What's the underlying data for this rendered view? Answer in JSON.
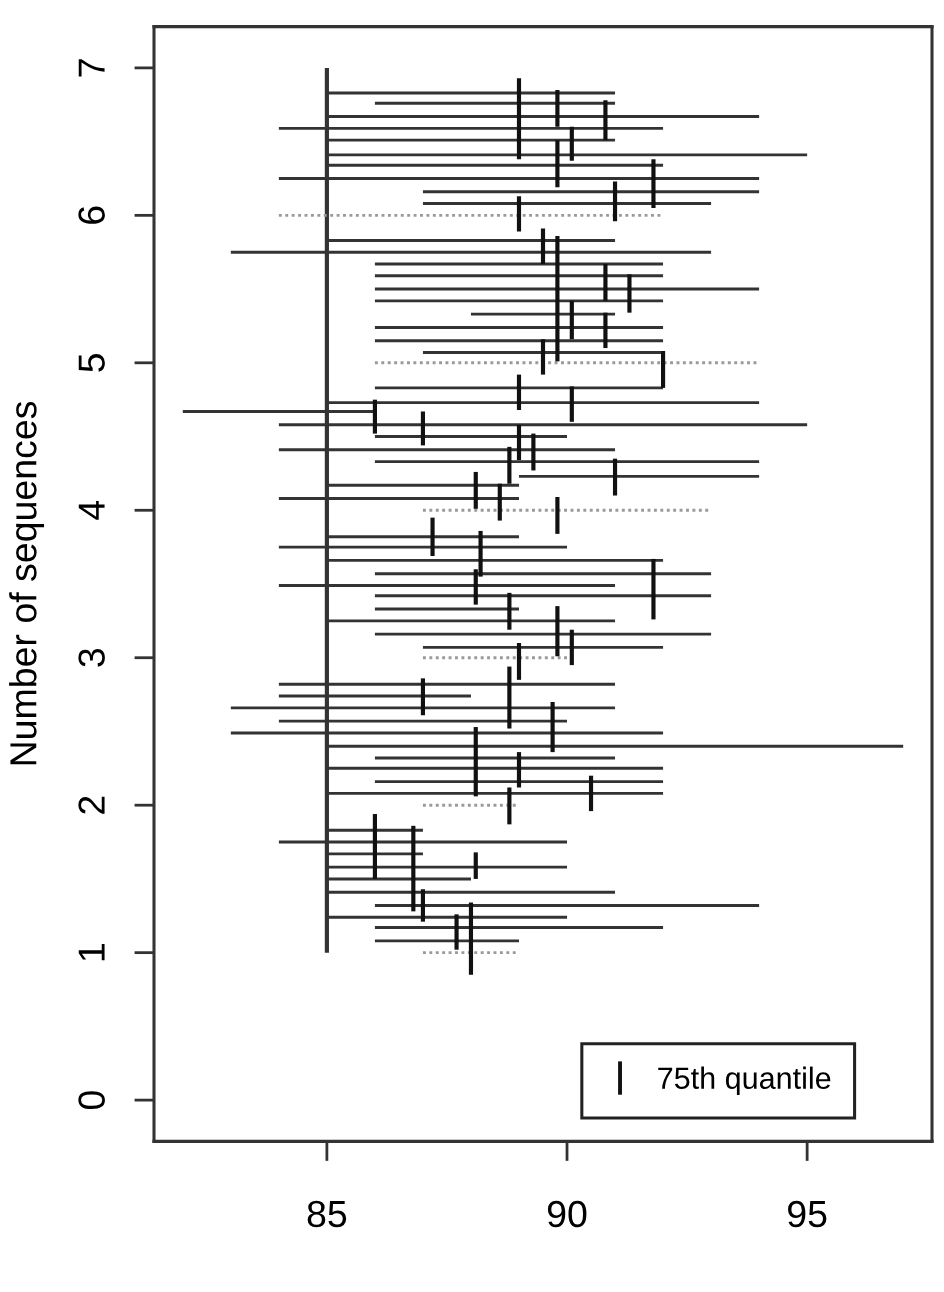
{
  "chart_data": {
    "type": "line",
    "ylabel": "Number of sequences",
    "xlim": [
      81.4,
      97.6
    ],
    "xticks": [
      85,
      90,
      95
    ],
    "ylim": [
      -0.28,
      7.28
    ],
    "yticks": [
      0,
      1,
      2,
      3,
      4,
      5,
      6,
      7
    ],
    "legend": "bottom right",
    "series": [
      {
        "color": "#333333",
        "x": [
          85,
          91
        ],
        "values": [
          6.83,
          6.83
        ]
      },
      {
        "color": "#333333",
        "x": [
          86,
          91
        ],
        "values": [
          6.76,
          6.76
        ]
      },
      {
        "color": "#333333",
        "x": [
          85,
          94
        ],
        "values": [
          6.67,
          6.67
        ]
      },
      {
        "color": "#333333",
        "x": [
          84,
          92
        ],
        "values": [
          6.59,
          6.59
        ]
      },
      {
        "color": "#333333",
        "x": [
          85,
          91
        ],
        "values": [
          6.51,
          6.51
        ]
      },
      {
        "color": "#333333",
        "x": [
          85,
          95
        ],
        "values": [
          6.41,
          6.41
        ]
      },
      {
        "color": "#333333",
        "x": [
          85,
          92
        ],
        "values": [
          6.34,
          6.34
        ]
      },
      {
        "color": "#333333",
        "x": [
          84,
          94
        ],
        "values": [
          6.25,
          6.25
        ]
      },
      {
        "color": "#333333",
        "x": [
          87,
          94
        ],
        "values": [
          6.16,
          6.16
        ]
      },
      {
        "color": "#333333",
        "x": [
          87,
          93
        ],
        "values": [
          6.08,
          6.08
        ]
      },
      {
        "color": "#333333",
        "x": [
          85,
          91
        ],
        "values": [
          5.83,
          5.83
        ]
      },
      {
        "color": "#333333",
        "x": [
          83,
          93
        ],
        "values": [
          5.75,
          5.75
        ]
      },
      {
        "color": "#333333",
        "x": [
          86,
          92
        ],
        "values": [
          5.67,
          5.67
        ]
      },
      {
        "color": "#333333",
        "x": [
          86,
          92
        ],
        "values": [
          5.59,
          5.59
        ]
      },
      {
        "color": "#333333",
        "x": [
          86,
          94
        ],
        "values": [
          5.5,
          5.5
        ]
      },
      {
        "color": "#333333",
        "x": [
          86,
          92
        ],
        "values": [
          5.42,
          5.42
        ]
      },
      {
        "color": "#333333",
        "x": [
          88,
          91
        ],
        "values": [
          5.33,
          5.33
        ]
      },
      {
        "color": "#333333",
        "x": [
          86,
          92
        ],
        "values": [
          5.24,
          5.24
        ]
      },
      {
        "color": "#333333",
        "x": [
          86,
          92
        ],
        "values": [
          5.15,
          5.15
        ]
      },
      {
        "color": "#333333",
        "x": [
          87,
          92
        ],
        "values": [
          5.07,
          5.07
        ]
      },
      {
        "color": "#333333",
        "x": [
          86,
          92
        ],
        "values": [
          4.83,
          4.83
        ]
      },
      {
        "color": "#333333",
        "x": [
          85,
          94
        ],
        "values": [
          4.73,
          4.73
        ]
      },
      {
        "color": "#333333",
        "x": [
          82,
          86
        ],
        "values": [
          4.67,
          4.67
        ]
      },
      {
        "color": "#333333",
        "x": [
          84,
          95
        ],
        "values": [
          4.58,
          4.58
        ]
      },
      {
        "color": "#333333",
        "x": [
          86,
          90
        ],
        "values": [
          4.5,
          4.5
        ]
      },
      {
        "color": "#333333",
        "x": [
          84,
          91
        ],
        "values": [
          4.41,
          4.41
        ]
      },
      {
        "color": "#333333",
        "x": [
          86,
          94
        ],
        "values": [
          4.33,
          4.33
        ]
      },
      {
        "color": "#333333",
        "x": [
          89,
          94
        ],
        "values": [
          4.23,
          4.23
        ]
      },
      {
        "color": "#333333",
        "x": [
          85,
          89
        ],
        "values": [
          4.17,
          4.17
        ]
      },
      {
        "color": "#333333",
        "x": [
          84,
          89
        ],
        "values": [
          4.08,
          4.08
        ]
      },
      {
        "color": "#333333",
        "x": [
          85,
          89
        ],
        "values": [
          3.82,
          3.82
        ]
      },
      {
        "color": "#333333",
        "x": [
          84,
          90
        ],
        "values": [
          3.75,
          3.75
        ]
      },
      {
        "color": "#333333",
        "x": [
          85,
          92
        ],
        "values": [
          3.66,
          3.66
        ]
      },
      {
        "color": "#333333",
        "x": [
          86,
          93
        ],
        "values": [
          3.57,
          3.57
        ]
      },
      {
        "color": "#333333",
        "x": [
          84,
          91
        ],
        "values": [
          3.49,
          3.49
        ]
      },
      {
        "color": "#333333",
        "x": [
          86,
          93
        ],
        "values": [
          3.42,
          3.42
        ]
      },
      {
        "color": "#333333",
        "x": [
          86,
          89
        ],
        "values": [
          3.33,
          3.33
        ]
      },
      {
        "color": "#333333",
        "x": [
          85,
          91
        ],
        "values": [
          3.25,
          3.25
        ]
      },
      {
        "color": "#333333",
        "x": [
          86,
          93
        ],
        "values": [
          3.16,
          3.16
        ]
      },
      {
        "color": "#333333",
        "x": [
          87,
          92
        ],
        "values": [
          3.07,
          3.07
        ]
      },
      {
        "color": "#333333",
        "x": [
          84,
          91
        ],
        "values": [
          2.82,
          2.82
        ]
      },
      {
        "color": "#333333",
        "x": [
          84,
          88
        ],
        "values": [
          2.74,
          2.74
        ]
      },
      {
        "color": "#333333",
        "x": [
          83,
          91
        ],
        "values": [
          2.66,
          2.66
        ]
      },
      {
        "color": "#333333",
        "x": [
          84,
          90
        ],
        "values": [
          2.57,
          2.57
        ]
      },
      {
        "color": "#333333",
        "x": [
          83,
          92
        ],
        "values": [
          2.49,
          2.49
        ]
      },
      {
        "color": "#333333",
        "x": [
          85,
          97
        ],
        "values": [
          2.4,
          2.4
        ]
      },
      {
        "color": "#333333",
        "x": [
          86,
          91
        ],
        "values": [
          2.32,
          2.32
        ]
      },
      {
        "color": "#333333",
        "x": [
          85,
          92
        ],
        "values": [
          2.25,
          2.25
        ]
      },
      {
        "color": "#333333",
        "x": [
          86,
          92
        ],
        "values": [
          2.16,
          2.16
        ]
      },
      {
        "color": "#333333",
        "x": [
          85,
          92
        ],
        "values": [
          2.08,
          2.08
        ]
      },
      {
        "color": "#333333",
        "x": [
          85,
          87
        ],
        "values": [
          1.83,
          1.83
        ]
      },
      {
        "color": "#333333",
        "x": [
          84,
          90
        ],
        "values": [
          1.75,
          1.75
        ]
      },
      {
        "color": "#333333",
        "x": [
          85,
          87
        ],
        "values": [
          1.67,
          1.67
        ]
      },
      {
        "color": "#333333",
        "x": [
          85,
          90
        ],
        "values": [
          1.58,
          1.58
        ]
      },
      {
        "color": "#333333",
        "x": [
          85,
          88
        ],
        "values": [
          1.5,
          1.5
        ]
      },
      {
        "color": "#333333",
        "x": [
          85,
          91
        ],
        "values": [
          1.41,
          1.41
        ]
      },
      {
        "color": "#333333",
        "x": [
          86,
          94
        ],
        "values": [
          1.32,
          1.32
        ]
      },
      {
        "color": "#333333",
        "x": [
          85,
          90
        ],
        "values": [
          1.24,
          1.24
        ]
      },
      {
        "color": "#333333",
        "x": [
          86,
          92
        ],
        "values": [
          1.17,
          1.17
        ]
      },
      {
        "color": "#333333",
        "x": [
          86,
          89
        ],
        "values": [
          1.08,
          1.08
        ]
      },
      {
        "color": "#333333",
        "x": [
          85,
          85
        ],
        "values": [
          1,
          7
        ]
      },
      {
        "color": "#9a9a9a",
        "line_style": "dotted",
        "x": [
          84,
          92
        ],
        "values": [
          6,
          6
        ]
      },
      {
        "color": "#9a9a9a",
        "line_style": "dotted",
        "x": [
          86,
          94
        ],
        "values": [
          5,
          5
        ]
      },
      {
        "color": "#9a9a9a",
        "line_style": "dotted",
        "x": [
          87,
          93
        ],
        "values": [
          4,
          4
        ]
      },
      {
        "color": "#9a9a9a",
        "line_style": "dotted",
        "x": [
          87,
          90
        ],
        "values": [
          3,
          3
        ]
      },
      {
        "color": "#9a9a9a",
        "line_style": "dotted",
        "x": [
          87,
          89
        ],
        "values": [
          2,
          2
        ]
      },
      {
        "color": "#9a9a9a",
        "line_style": "dotted",
        "x": [
          87,
          89
        ],
        "values": [
          1,
          1
        ]
      },
      {
        "name": "75th quantile",
        "color": "#111111",
        "x": [
          89,
          89
        ],
        "values": [
          6.38,
          6.93
        ]
      },
      {
        "color": "#111111",
        "x": [
          89.8,
          89.8
        ],
        "values": [
          6.6,
          6.85
        ]
      },
      {
        "color": "#111111",
        "x": [
          90.8,
          90.8
        ],
        "values": [
          6.51,
          6.78
        ]
      },
      {
        "color": "#111111",
        "x": [
          90.1,
          90.1
        ],
        "values": [
          6.37,
          6.6
        ]
      },
      {
        "color": "#111111",
        "x": [
          89.8,
          89.8
        ],
        "values": [
          6.19,
          6.51
        ]
      },
      {
        "color": "#111111",
        "x": [
          91.8,
          91.8
        ],
        "values": [
          6.05,
          6.38
        ]
      },
      {
        "color": "#111111",
        "x": [
          91,
          91
        ],
        "values": [
          5.96,
          6.23
        ]
      },
      {
        "color": "#111111",
        "x": [
          89,
          89
        ],
        "values": [
          5.89,
          6.13
        ]
      },
      {
        "color": "#111111",
        "x": [
          89.5,
          89.5
        ],
        "values": [
          5.67,
          5.91
        ]
      },
      {
        "color": "#111111",
        "x": [
          89.8,
          89.8
        ],
        "values": [
          5.01,
          5.86
        ]
      },
      {
        "color": "#111111",
        "x": [
          90.8,
          90.8
        ],
        "values": [
          5.42,
          5.67
        ]
      },
      {
        "color": "#111111",
        "x": [
          91.3,
          91.3
        ],
        "values": [
          5.34,
          5.6
        ]
      },
      {
        "color": "#111111",
        "x": [
          90.1,
          90.1
        ],
        "values": [
          5.16,
          5.42
        ]
      },
      {
        "color": "#111111",
        "x": [
          90.8,
          90.8
        ],
        "values": [
          5.1,
          5.34
        ]
      },
      {
        "color": "#111111",
        "x": [
          89.5,
          89.5
        ],
        "values": [
          4.92,
          5.16
        ]
      },
      {
        "color": "#111111",
        "x": [
          92,
          92
        ],
        "values": [
          4.83,
          5.08
        ]
      },
      {
        "color": "#111111",
        "x": [
          89,
          89
        ],
        "values": [
          4.68,
          4.92
        ]
      },
      {
        "color": "#111111",
        "x": [
          90.1,
          90.1
        ],
        "values": [
          4.6,
          4.84
        ]
      },
      {
        "color": "#111111",
        "x": [
          86,
          86
        ],
        "values": [
          4.52,
          4.75
        ]
      },
      {
        "color": "#111111",
        "x": [
          87,
          87
        ],
        "values": [
          4.44,
          4.67
        ]
      },
      {
        "color": "#111111",
        "x": [
          89,
          89
        ],
        "values": [
          4.34,
          4.58
        ]
      },
      {
        "color": "#111111",
        "x": [
          89.3,
          89.3
        ],
        "values": [
          4.27,
          4.52
        ]
      },
      {
        "color": "#111111",
        "x": [
          88.8,
          88.8
        ],
        "values": [
          4.18,
          4.43
        ]
      },
      {
        "color": "#111111",
        "x": [
          91,
          91
        ],
        "values": [
          4.1,
          4.35
        ]
      },
      {
        "color": "#111111",
        "x": [
          88.1,
          88.1
        ],
        "values": [
          4.01,
          4.26
        ]
      },
      {
        "color": "#111111",
        "x": [
          88.6,
          88.6
        ],
        "values": [
          3.93,
          4.18
        ]
      },
      {
        "color": "#111111",
        "x": [
          89.8,
          89.8
        ],
        "values": [
          3.84,
          4.09
        ]
      },
      {
        "color": "#111111",
        "x": [
          87.2,
          87.2
        ],
        "values": [
          3.69,
          3.95
        ]
      },
      {
        "color": "#111111",
        "x": [
          88.2,
          88.2
        ],
        "values": [
          3.55,
          3.86
        ]
      },
      {
        "color": "#111111",
        "x": [
          91.8,
          91.8
        ],
        "values": [
          3.26,
          3.67
        ]
      },
      {
        "color": "#111111",
        "x": [
          88.1,
          88.1
        ],
        "values": [
          3.36,
          3.6
        ]
      },
      {
        "color": "#111111",
        "x": [
          88.8,
          88.8
        ],
        "values": [
          3.19,
          3.44
        ]
      },
      {
        "color": "#111111",
        "x": [
          89.8,
          89.8
        ],
        "values": [
          3.01,
          3.35
        ]
      },
      {
        "color": "#111111",
        "x": [
          90.1,
          90.1
        ],
        "values": [
          2.95,
          3.19
        ]
      },
      {
        "color": "#111111",
        "x": [
          89,
          89
        ],
        "values": [
          2.85,
          3.1
        ]
      },
      {
        "color": "#111111",
        "x": [
          88.8,
          88.8
        ],
        "values": [
          2.52,
          2.94
        ]
      },
      {
        "color": "#111111",
        "x": [
          87,
          87
        ],
        "values": [
          2.61,
          2.86
        ]
      },
      {
        "color": "#111111",
        "x": [
          89.7,
          89.7
        ],
        "values": [
          2.36,
          2.7
        ]
      },
      {
        "color": "#111111",
        "x": [
          88.1,
          88.1
        ],
        "values": [
          2.06,
          2.53
        ]
      },
      {
        "color": "#111111",
        "x": [
          89,
          89
        ],
        "values": [
          2.12,
          2.36
        ]
      },
      {
        "color": "#111111",
        "x": [
          90.5,
          90.5
        ],
        "values": [
          1.96,
          2.2
        ]
      },
      {
        "color": "#111111",
        "x": [
          88.8,
          88.8
        ],
        "values": [
          1.87,
          2.12
        ]
      },
      {
        "color": "#111111",
        "x": [
          86,
          86
        ],
        "values": [
          1.5,
          1.94
        ]
      },
      {
        "color": "#111111",
        "x": [
          86.8,
          86.8
        ],
        "values": [
          1.28,
          1.86
        ]
      },
      {
        "color": "#111111",
        "x": [
          87,
          87
        ],
        "values": [
          1.21,
          1.43
        ]
      },
      {
        "color": "#111111",
        "x": [
          88.1,
          88.1
        ],
        "values": [
          1.5,
          1.68
        ]
      },
      {
        "color": "#111111",
        "x": [
          87.7,
          87.7
        ],
        "values": [
          1.02,
          1.26
        ]
      },
      {
        "color": "#111111",
        "x": [
          88,
          88
        ],
        "values": [
          0.85,
          1.34
        ]
      }
    ]
  }
}
